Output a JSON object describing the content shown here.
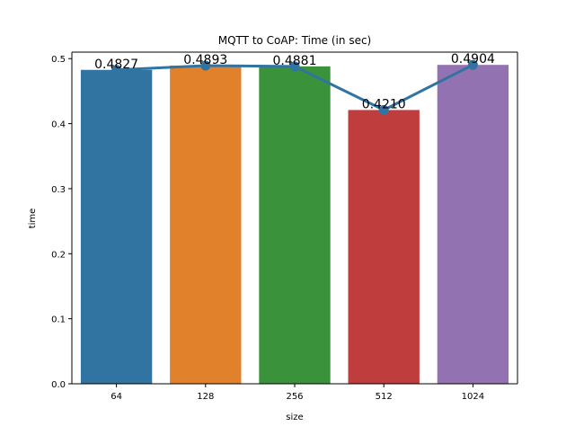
{
  "chart_data": {
    "type": "bar",
    "title": "MQTT to CoAP: Time (in sec)",
    "xlabel": "size",
    "ylabel": "time",
    "categories": [
      "64",
      "128",
      "256",
      "512",
      "1024"
    ],
    "values": [
      0.4827,
      0.4893,
      0.4881,
      0.421,
      0.4904
    ],
    "data_labels": [
      "0.4827",
      "0.4893",
      "0.4881",
      "0.4210",
      "0.4904"
    ],
    "ylim": [
      0,
      0.51
    ],
    "yticks": [
      0.0,
      0.1,
      0.2,
      0.3,
      0.4,
      0.5
    ],
    "ytick_labels": [
      "0.0",
      "0.1",
      "0.2",
      "0.3",
      "0.4",
      "0.5"
    ],
    "bar_colors": [
      "#3274a1",
      "#e1812c",
      "#3a923a",
      "#c03d3e",
      "#9372b2"
    ],
    "overlay_line": {
      "type": "line",
      "values": [
        0.4827,
        0.4893,
        0.4881,
        0.421,
        0.4904
      ],
      "color": "#3274a1",
      "markers": true
    },
    "grid": false,
    "legend": "none"
  }
}
